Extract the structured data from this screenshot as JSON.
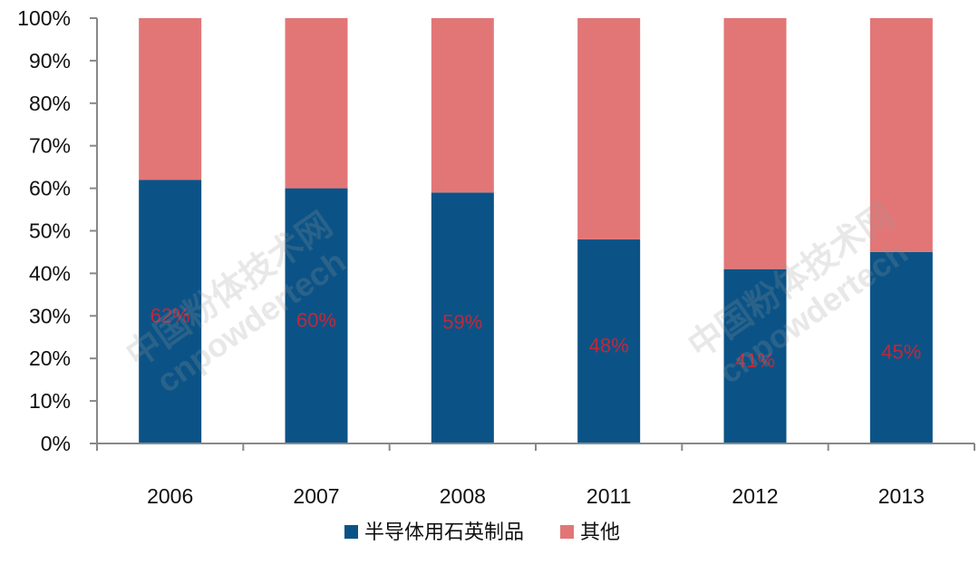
{
  "chart_data": {
    "type": "bar",
    "stacked": true,
    "percent": true,
    "categories": [
      "2006",
      "2007",
      "2008",
      "2011",
      "2012",
      "2013"
    ],
    "series": [
      {
        "name": "半导体用石英制品",
        "values": [
          62,
          60,
          59,
          48,
          41,
          45
        ],
        "color": "#0b5386"
      },
      {
        "name": "其他",
        "values": [
          38,
          40,
          41,
          52,
          59,
          55
        ],
        "color": "#e27677"
      }
    ],
    "data_labels": [
      "62%",
      "60%",
      "59%",
      "48%",
      "41%",
      "45%"
    ],
    "data_label_color": "#c0283a",
    "yticks": [
      "0%",
      "10%",
      "20%",
      "30%",
      "40%",
      "50%",
      "60%",
      "70%",
      "80%",
      "90%",
      "100%"
    ],
    "ylim": [
      0,
      100
    ],
    "grid": false,
    "legend_position": "bottom",
    "title": "",
    "xlabel": "",
    "ylabel": ""
  },
  "watermark": [
    "中国粉体技术网",
    "cnpowdertech"
  ]
}
